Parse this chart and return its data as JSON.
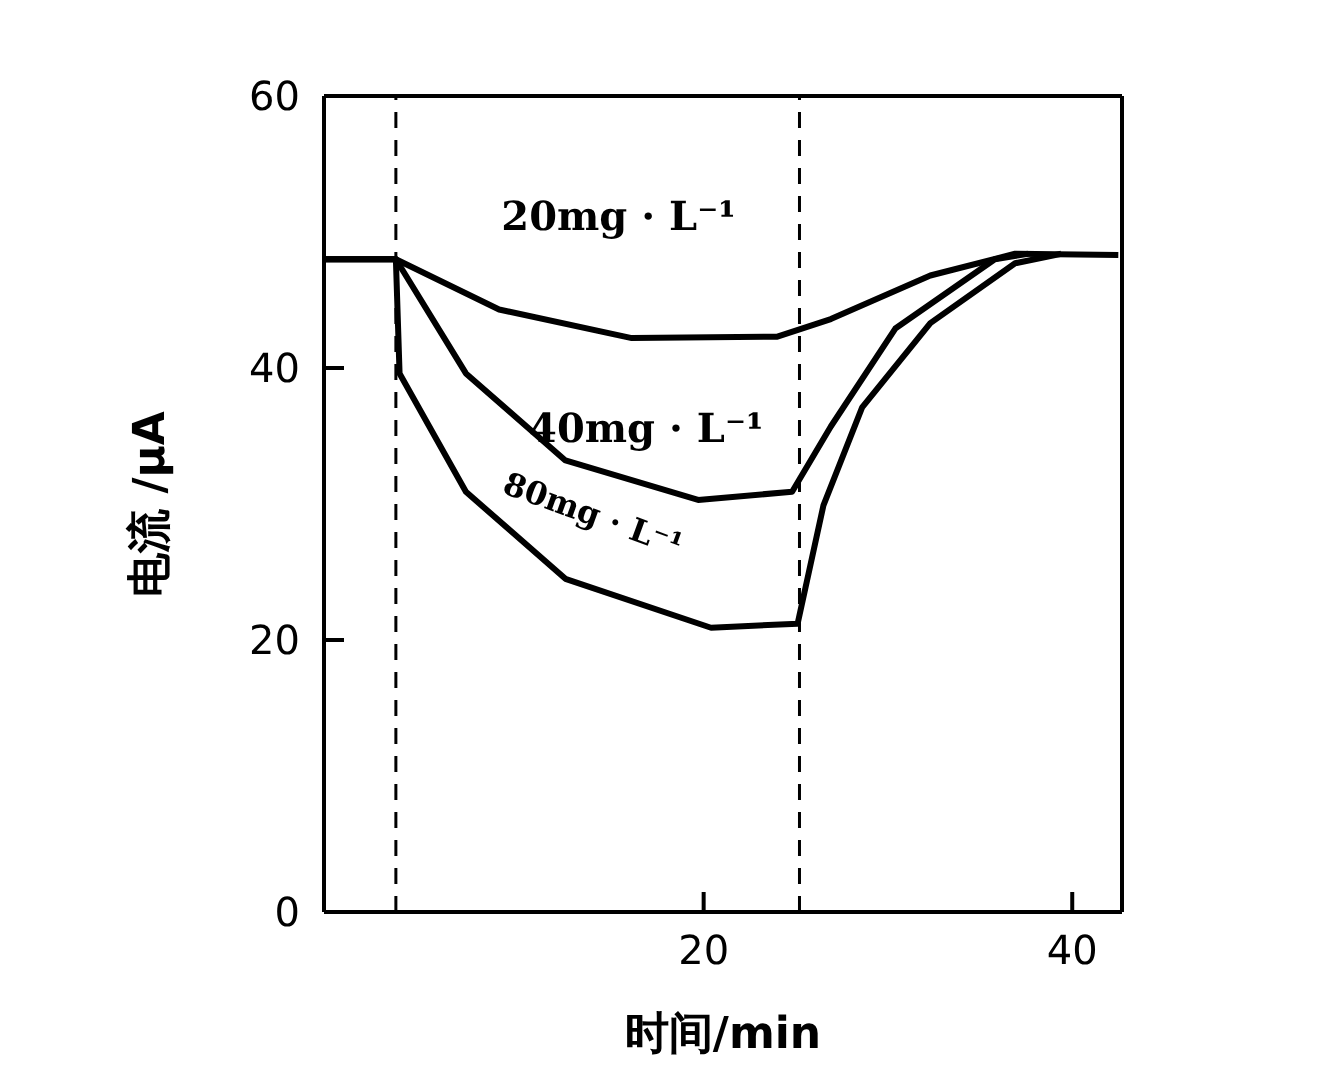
{
  "chart_data": {
    "type": "line",
    "xlabel": "时间/min",
    "ylabel": "电流 /μA",
    "xlim": [
      -0.6,
      42.7
    ],
    "xticks": [
      20,
      40
    ],
    "ylim": [
      0,
      60
    ],
    "yticks": [
      0,
      20,
      40,
      60
    ],
    "marker": "none",
    "line_style": "solid",
    "series": [
      {
        "name": "20mg · L⁻¹",
        "color": "#000000",
        "x": [
          -0.6,
          3.3,
          8.9,
          16.1,
          24,
          26.9,
          32.3,
          36.9,
          42.5
        ],
        "values": [
          48,
          48,
          44.3,
          42.2,
          42.3,
          43.6,
          46.8,
          48.4,
          48.3
        ]
      },
      {
        "name": "40mg · L⁻¹",
        "color": "#000000",
        "x": [
          -0.6,
          3.3,
          7.1,
          12.5,
          19.7,
          24.8,
          26.9,
          30.4,
          35.8,
          37.6
        ],
        "values": [
          48,
          48,
          39.6,
          33.2,
          30.3,
          30.9,
          35.7,
          42.9,
          48,
          48.4
        ]
      },
      {
        "name": "80mg · L⁻¹",
        "color": "#000000",
        "x": [
          -0.6,
          3.3,
          3.5,
          7.1,
          12.5,
          20.4,
          25.1,
          26.5,
          28.6,
          32.3,
          36.9,
          39.4
        ],
        "values": [
          48,
          48,
          39.6,
          30.9,
          24.5,
          20.9,
          21.2,
          29.9,
          37.1,
          43.3,
          47.7,
          48.4
        ]
      }
    ],
    "ref_lines": [
      {
        "axis": "x",
        "value": 3.3,
        "color": "#000000",
        "line_style": "dashed"
      },
      {
        "axis": "x",
        "value": 25.2,
        "color": "#000000",
        "line_style": "dashed"
      }
    ]
  }
}
